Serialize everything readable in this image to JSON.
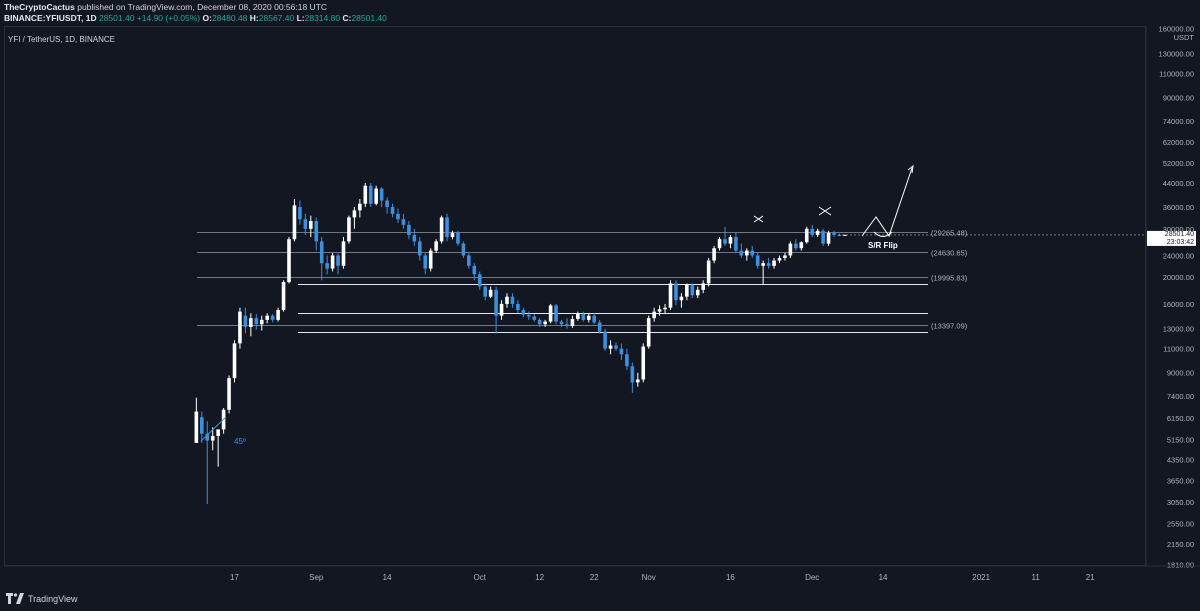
{
  "header": {
    "author": "TheCryptoCactus",
    "published": "published on TradingView.com, December 08, 2020 00:56:18 UTC",
    "ticker": "BINANCE:YFIUSDT",
    "interval": "1D",
    "last": "28501.40",
    "change": "+14.90 (+0.05%)",
    "o_label": "O:",
    "o": "28480.48",
    "h_label": "H:",
    "h": "28567.40",
    "l_label": "L:",
    "l": "28314.80",
    "c_label": "C:",
    "c": "28501.40"
  },
  "symbol_label": "YFI / TetherUS, 1D, BINANCE",
  "footer": {
    "brand": "TradingView"
  },
  "colors": {
    "background": "#131722",
    "up": "#ffffff",
    "down": "#3d8fe0",
    "level_line": "#b2b5be",
    "price_tag": "#ffffff"
  },
  "icons": [
    "tradingview-logo-icon"
  ],
  "chart_data": {
    "type": "candlestick",
    "scale": "log",
    "y_currency": "USDT",
    "y_ticks": [
      "160000.00",
      "130000.00",
      "110000.00",
      "90000.00",
      "74000.00",
      "62000.00",
      "52000.00",
      "44000.00",
      "36000.00",
      "30000.00",
      "24000.00",
      "20000.00",
      "16000.00",
      "13000.00",
      "11000.00",
      "9000.00",
      "7400.00",
      "6150.00",
      "5150.00",
      "4350.00",
      "3650.00",
      "3050.00",
      "2550.00",
      "2150.00",
      "1810.00"
    ],
    "x_ticks": [
      {
        "label": "17",
        "date": "2020-08-17"
      },
      {
        "label": "Sep",
        "date": "2020-09-01"
      },
      {
        "label": "14",
        "date": "2020-09-14"
      },
      {
        "label": "Oct",
        "date": "2020-10-01"
      },
      {
        "label": "12",
        "date": "2020-10-12"
      },
      {
        "label": "22",
        "date": "2020-10-22"
      },
      {
        "label": "Nov",
        "date": "2020-11-01"
      },
      {
        "label": "16",
        "date": "2020-11-16"
      },
      {
        "label": "Dec",
        "date": "2020-12-01"
      },
      {
        "label": "14",
        "date": "2020-12-14"
      },
      {
        "label": "2021",
        "date": "2021-01-01"
      },
      {
        "label": "11",
        "date": "2021-01-11"
      },
      {
        "label": "21",
        "date": "2021-01-21"
      }
    ],
    "current_price": "28501.40",
    "countdown": "23:03:42",
    "levels": [
      {
        "label": "(29265.48)",
        "value": 29265.48
      },
      {
        "label": "(24630.65)",
        "value": 24630.65
      },
      {
        "label": "(19995.83)",
        "value": 19995.83
      },
      {
        "label": "",
        "value": 18900
      },
      {
        "label": "",
        "value": 14800
      },
      {
        "label": "(13397.09)",
        "value": 13397.09
      },
      {
        "label": "",
        "value": 12600
      }
    ],
    "annotations": [
      "45º",
      "S/R Flip"
    ],
    "candles": [
      {
        "date": "2020-08-10",
        "o": 5000,
        "h": 7300,
        "l": 5000,
        "c": 6500
      },
      {
        "date": "2020-08-11",
        "o": 6200,
        "h": 6500,
        "l": 5000,
        "c": 5400
      },
      {
        "date": "2020-08-12",
        "o": 5400,
        "h": 6000,
        "l": 3000,
        "c": 5100
      },
      {
        "date": "2020-08-13",
        "o": 5100,
        "h": 5700,
        "l": 4700,
        "c": 5300
      },
      {
        "date": "2020-08-14",
        "o": 5300,
        "h": 5600,
        "l": 4100,
        "c": 5600
      },
      {
        "date": "2020-08-15",
        "o": 5600,
        "h": 6700,
        "l": 5400,
        "c": 6600
      },
      {
        "date": "2020-08-16",
        "o": 6600,
        "h": 8800,
        "l": 6400,
        "c": 8600
      },
      {
        "date": "2020-08-17",
        "o": 8600,
        "h": 11800,
        "l": 8300,
        "c": 11500
      },
      {
        "date": "2020-08-18",
        "o": 11500,
        "h": 15500,
        "l": 11000,
        "c": 15000
      },
      {
        "date": "2020-08-19",
        "o": 14500,
        "h": 15500,
        "l": 12500,
        "c": 13200
      },
      {
        "date": "2020-08-20",
        "o": 13200,
        "h": 14800,
        "l": 12200,
        "c": 14200
      },
      {
        "date": "2020-08-21",
        "o": 14200,
        "h": 14700,
        "l": 12900,
        "c": 13500
      },
      {
        "date": "2020-08-22",
        "o": 13500,
        "h": 14500,
        "l": 12800,
        "c": 14000
      },
      {
        "date": "2020-08-23",
        "o": 14000,
        "h": 14800,
        "l": 13600,
        "c": 14500
      },
      {
        "date": "2020-08-24",
        "o": 14500,
        "h": 14700,
        "l": 13700,
        "c": 14000
      },
      {
        "date": "2020-08-25",
        "o": 14000,
        "h": 15500,
        "l": 13800,
        "c": 15200
      },
      {
        "date": "2020-08-26",
        "o": 15200,
        "h": 19500,
        "l": 15000,
        "c": 19200
      },
      {
        "date": "2020-08-27",
        "o": 19200,
        "h": 28000,
        "l": 19000,
        "c": 27500
      },
      {
        "date": "2020-08-28",
        "o": 27500,
        "h": 38500,
        "l": 27000,
        "c": 36500
      },
      {
        "date": "2020-08-29",
        "o": 36000,
        "h": 38000,
        "l": 31000,
        "c": 32500
      },
      {
        "date": "2020-08-30",
        "o": 32500,
        "h": 34000,
        "l": 28500,
        "c": 30000
      },
      {
        "date": "2020-08-31",
        "o": 30000,
        "h": 33500,
        "l": 28000,
        "c": 32000
      },
      {
        "date": "2020-09-01",
        "o": 32000,
        "h": 33000,
        "l": 25000,
        "c": 27000
      },
      {
        "date": "2020-09-02",
        "o": 27000,
        "h": 28000,
        "l": 19500,
        "c": 22500
      },
      {
        "date": "2020-09-03",
        "o": 22500,
        "h": 24000,
        "l": 20500,
        "c": 21500
      },
      {
        "date": "2020-09-04",
        "o": 21500,
        "h": 24500,
        "l": 21000,
        "c": 24000
      },
      {
        "date": "2020-09-05",
        "o": 24000,
        "h": 24500,
        "l": 20500,
        "c": 22000
      },
      {
        "date": "2020-09-06",
        "o": 22000,
        "h": 28000,
        "l": 21500,
        "c": 27000
      },
      {
        "date": "2020-09-07",
        "o": 27000,
        "h": 33500,
        "l": 26500,
        "c": 33000
      },
      {
        "date": "2020-09-08",
        "o": 33000,
        "h": 36000,
        "l": 30000,
        "c": 35000
      },
      {
        "date": "2020-09-09",
        "o": 35000,
        "h": 38500,
        "l": 33000,
        "c": 37000
      },
      {
        "date": "2020-09-10",
        "o": 37000,
        "h": 44000,
        "l": 36000,
        "c": 43000
      },
      {
        "date": "2020-09-11",
        "o": 43000,
        "h": 44000,
        "l": 36000,
        "c": 37000
      },
      {
        "date": "2020-09-12",
        "o": 37000,
        "h": 43000,
        "l": 36500,
        "c": 42000
      },
      {
        "date": "2020-09-13",
        "o": 42000,
        "h": 42500,
        "l": 36000,
        "c": 38000
      },
      {
        "date": "2020-09-14",
        "o": 38000,
        "h": 39000,
        "l": 34000,
        "c": 36000
      },
      {
        "date": "2020-09-15",
        "o": 36000,
        "h": 37000,
        "l": 33000,
        "c": 34000
      },
      {
        "date": "2020-09-16",
        "o": 34000,
        "h": 35500,
        "l": 31500,
        "c": 32500
      },
      {
        "date": "2020-09-17",
        "o": 32500,
        "h": 34000,
        "l": 30000,
        "c": 31000
      },
      {
        "date": "2020-09-18",
        "o": 31000,
        "h": 32000,
        "l": 27500,
        "c": 28500
      },
      {
        "date": "2020-09-19",
        "o": 28500,
        "h": 30000,
        "l": 26000,
        "c": 27000
      },
      {
        "date": "2020-09-20",
        "o": 27000,
        "h": 28000,
        "l": 23000,
        "c": 24000
      },
      {
        "date": "2020-09-21",
        "o": 24000,
        "h": 24500,
        "l": 20500,
        "c": 21500
      },
      {
        "date": "2020-09-22",
        "o": 21500,
        "h": 25500,
        "l": 21000,
        "c": 25000
      },
      {
        "date": "2020-09-23",
        "o": 25000,
        "h": 27500,
        "l": 24500,
        "c": 27000
      },
      {
        "date": "2020-09-24",
        "o": 27000,
        "h": 33500,
        "l": 26500,
        "c": 33000
      },
      {
        "date": "2020-09-25",
        "o": 33000,
        "h": 34000,
        "l": 27000,
        "c": 28000
      },
      {
        "date": "2020-09-26",
        "o": 28000,
        "h": 29500,
        "l": 27500,
        "c": 29000
      },
      {
        "date": "2020-09-27",
        "o": 29000,
        "h": 29500,
        "l": 26000,
        "c": 26500
      },
      {
        "date": "2020-09-28",
        "o": 26500,
        "h": 27000,
        "l": 23500,
        "c": 24000
      },
      {
        "date": "2020-09-29",
        "o": 24000,
        "h": 24500,
        "l": 21500,
        "c": 22000
      },
      {
        "date": "2020-09-30",
        "o": 22000,
        "h": 22500,
        "l": 19500,
        "c": 20500
      },
      {
        "date": "2020-10-01",
        "o": 20500,
        "h": 21000,
        "l": 18000,
        "c": 18500
      },
      {
        "date": "2020-10-02",
        "o": 18500,
        "h": 19000,
        "l": 16500,
        "c": 17000
      },
      {
        "date": "2020-10-03",
        "o": 17000,
        "h": 18500,
        "l": 16800,
        "c": 18000
      },
      {
        "date": "2020-10-04",
        "o": 18000,
        "h": 18500,
        "l": 12500,
        "c": 14500
      },
      {
        "date": "2020-10-05",
        "o": 14500,
        "h": 16500,
        "l": 14000,
        "c": 16000
      },
      {
        "date": "2020-10-06",
        "o": 16000,
        "h": 17500,
        "l": 15500,
        "c": 17000
      },
      {
        "date": "2020-10-07",
        "o": 17000,
        "h": 17500,
        "l": 15500,
        "c": 16000
      },
      {
        "date": "2020-10-08",
        "o": 16000,
        "h": 16500,
        "l": 14800,
        "c": 15200
      },
      {
        "date": "2020-10-09",
        "o": 15200,
        "h": 15500,
        "l": 14300,
        "c": 14600
      },
      {
        "date": "2020-10-10",
        "o": 14600,
        "h": 15000,
        "l": 14000,
        "c": 14400
      },
      {
        "date": "2020-10-11",
        "o": 14400,
        "h": 14700,
        "l": 13800,
        "c": 14000
      },
      {
        "date": "2020-10-12",
        "o": 14000,
        "h": 14200,
        "l": 13200,
        "c": 13500
      },
      {
        "date": "2020-10-13",
        "o": 13500,
        "h": 14000,
        "l": 13200,
        "c": 13800
      },
      {
        "date": "2020-10-14",
        "o": 13800,
        "h": 16000,
        "l": 13600,
        "c": 15800
      },
      {
        "date": "2020-10-15",
        "o": 15800,
        "h": 16000,
        "l": 13500,
        "c": 13800
      },
      {
        "date": "2020-10-16",
        "o": 13800,
        "h": 14000,
        "l": 13200,
        "c": 13500
      },
      {
        "date": "2020-10-17",
        "o": 13500,
        "h": 14200,
        "l": 13000,
        "c": 13300
      },
      {
        "date": "2020-10-18",
        "o": 13300,
        "h": 14500,
        "l": 13100,
        "c": 14100
      },
      {
        "date": "2020-10-19",
        "o": 14100,
        "h": 15000,
        "l": 13900,
        "c": 14700
      },
      {
        "date": "2020-10-20",
        "o": 14700,
        "h": 15000,
        "l": 13800,
        "c": 14000
      },
      {
        "date": "2020-10-21",
        "o": 14000,
        "h": 14800,
        "l": 13700,
        "c": 14500
      },
      {
        "date": "2020-10-22",
        "o": 14500,
        "h": 14800,
        "l": 13500,
        "c": 13700
      },
      {
        "date": "2020-10-23",
        "o": 13700,
        "h": 14000,
        "l": 12500,
        "c": 12700
      },
      {
        "date": "2020-10-24",
        "o": 12700,
        "h": 13000,
        "l": 10800,
        "c": 11000
      },
      {
        "date": "2020-10-25",
        "o": 11000,
        "h": 11800,
        "l": 10500,
        "c": 11300
      },
      {
        "date": "2020-10-26",
        "o": 11300,
        "h": 11600,
        "l": 10800,
        "c": 11000
      },
      {
        "date": "2020-10-27",
        "o": 11000,
        "h": 11500,
        "l": 10000,
        "c": 10500
      },
      {
        "date": "2020-10-28",
        "o": 10500,
        "h": 11000,
        "l": 9200,
        "c": 9500
      },
      {
        "date": "2020-10-29",
        "o": 9500,
        "h": 9800,
        "l": 7600,
        "c": 8300
      },
      {
        "date": "2020-10-30",
        "o": 8300,
        "h": 9000,
        "l": 8000,
        "c": 8500
      },
      {
        "date": "2020-10-31",
        "o": 8500,
        "h": 11500,
        "l": 8300,
        "c": 11200
      },
      {
        "date": "2020-11-01",
        "o": 11200,
        "h": 14500,
        "l": 11000,
        "c": 14200
      },
      {
        "date": "2020-11-02",
        "o": 14200,
        "h": 15500,
        "l": 13800,
        "c": 15000
      },
      {
        "date": "2020-11-03",
        "o": 15000,
        "h": 15800,
        "l": 14500,
        "c": 15300
      },
      {
        "date": "2020-11-04",
        "o": 15300,
        "h": 16000,
        "l": 14800,
        "c": 15500
      },
      {
        "date": "2020-11-05",
        "o": 15500,
        "h": 19500,
        "l": 15200,
        "c": 19000
      },
      {
        "date": "2020-11-06",
        "o": 19000,
        "h": 19500,
        "l": 15800,
        "c": 16500
      },
      {
        "date": "2020-11-07",
        "o": 16500,
        "h": 17500,
        "l": 15500,
        "c": 17000
      },
      {
        "date": "2020-11-08",
        "o": 17000,
        "h": 19000,
        "l": 16500,
        "c": 18800
      },
      {
        "date": "2020-11-09",
        "o": 18800,
        "h": 19000,
        "l": 16800,
        "c": 17200
      },
      {
        "date": "2020-11-10",
        "o": 17200,
        "h": 18500,
        "l": 16800,
        "c": 18000
      },
      {
        "date": "2020-11-11",
        "o": 18000,
        "h": 19500,
        "l": 17500,
        "c": 19000
      },
      {
        "date": "2020-11-12",
        "o": 19000,
        "h": 23500,
        "l": 18500,
        "c": 23000
      },
      {
        "date": "2020-11-13",
        "o": 23000,
        "h": 26000,
        "l": 22500,
        "c": 25500
      },
      {
        "date": "2020-11-14",
        "o": 25500,
        "h": 28000,
        "l": 25000,
        "c": 27500
      },
      {
        "date": "2020-11-15",
        "o": 27500,
        "h": 30500,
        "l": 26000,
        "c": 26500
      },
      {
        "date": "2020-11-16",
        "o": 26500,
        "h": 28500,
        "l": 25500,
        "c": 28000
      },
      {
        "date": "2020-11-17",
        "o": 28000,
        "h": 29000,
        "l": 24500,
        "c": 25000
      },
      {
        "date": "2020-11-18",
        "o": 25000,
        "h": 26500,
        "l": 23500,
        "c": 24000
      },
      {
        "date": "2020-11-19",
        "o": 24000,
        "h": 25500,
        "l": 23000,
        "c": 25000
      },
      {
        "date": "2020-11-20",
        "o": 25000,
        "h": 26000,
        "l": 23500,
        "c": 24000
      },
      {
        "date": "2020-11-21",
        "o": 24000,
        "h": 24500,
        "l": 21500,
        "c": 22000
      },
      {
        "date": "2020-11-22",
        "o": 22000,
        "h": 23000,
        "l": 18800,
        "c": 22500
      },
      {
        "date": "2020-11-23",
        "o": 22500,
        "h": 23500,
        "l": 21500,
        "c": 22000
      },
      {
        "date": "2020-11-24",
        "o": 22000,
        "h": 23500,
        "l": 21500,
        "c": 23000
      },
      {
        "date": "2020-11-25",
        "o": 23000,
        "h": 24000,
        "l": 22500,
        "c": 23500
      },
      {
        "date": "2020-11-26",
        "o": 23500,
        "h": 24500,
        "l": 23000,
        "c": 24000
      },
      {
        "date": "2020-11-27",
        "o": 24000,
        "h": 27000,
        "l": 23500,
        "c": 26500
      },
      {
        "date": "2020-11-28",
        "o": 26500,
        "h": 27500,
        "l": 25000,
        "c": 25500
      },
      {
        "date": "2020-11-29",
        "o": 25500,
        "h": 27000,
        "l": 25000,
        "c": 26800
      },
      {
        "date": "2020-11-30",
        "o": 26800,
        "h": 30500,
        "l": 26500,
        "c": 30000
      },
      {
        "date": "2020-12-01",
        "o": 30000,
        "h": 31000,
        "l": 28000,
        "c": 28500
      },
      {
        "date": "2020-12-02",
        "o": 28500,
        "h": 30000,
        "l": 28000,
        "c": 29500
      },
      {
        "date": "2020-12-03",
        "o": 29500,
        "h": 30000,
        "l": 26000,
        "c": 26500
      },
      {
        "date": "2020-12-04",
        "o": 26500,
        "h": 29500,
        "l": 26000,
        "c": 29000
      },
      {
        "date": "2020-12-05",
        "o": 29000,
        "h": 29500,
        "l": 28000,
        "c": 28500
      },
      {
        "date": "2020-12-06",
        "o": 28500,
        "h": 28800,
        "l": 28200,
        "c": 28480
      },
      {
        "date": "2020-12-07",
        "o": 28480,
        "h": 28567,
        "l": 28315,
        "c": 28501
      }
    ]
  }
}
